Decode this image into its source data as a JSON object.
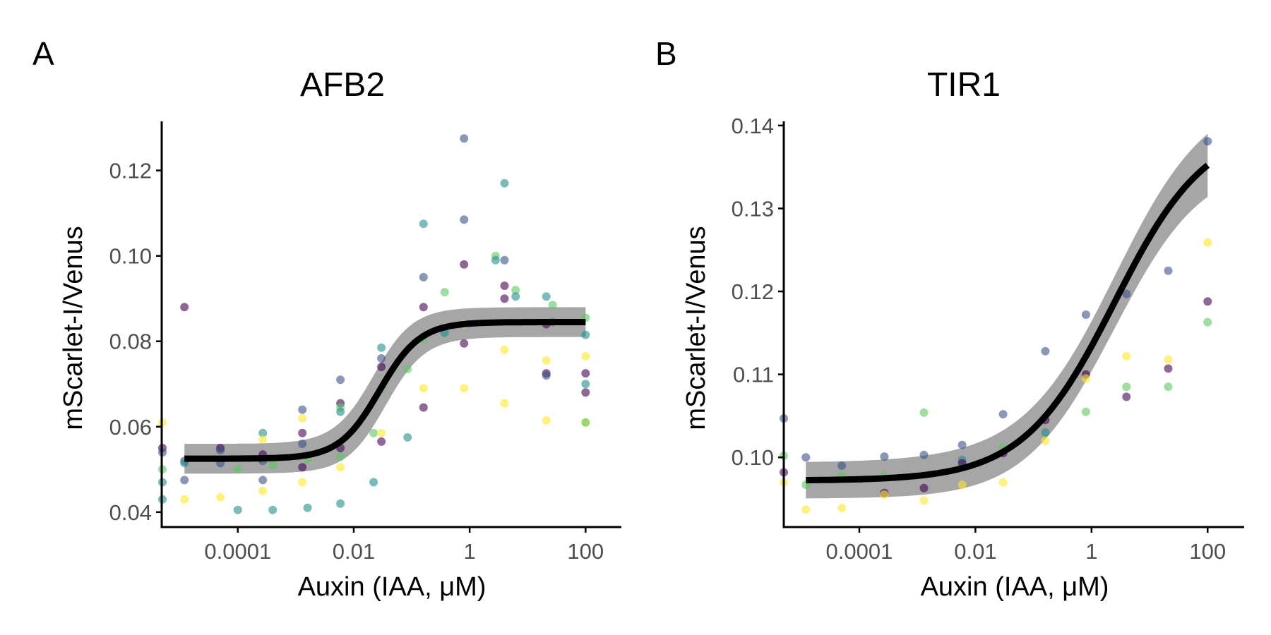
{
  "figure": {
    "panels": [
      {
        "letter": "A",
        "title": "AFB2"
      },
      {
        "letter": "B",
        "title": "TIR1"
      }
    ]
  },
  "colors": {
    "fit_line": "#000000",
    "ribbon": "#a6a6a6",
    "viridis": [
      "#440154",
      "#3b528b",
      "#21908c",
      "#5dc863",
      "#fde725"
    ]
  },
  "chart_data": [
    {
      "type": "scatter",
      "title": "AFB2",
      "xlabel": "Auxin (IAA, μM)",
      "ylabel": "mScarlet-I/Venus",
      "x_scale": "log10",
      "xlim": [
        5e-06,
        200
      ],
      "ylim": [
        0.0365,
        0.1315
      ],
      "x_ticks": [
        0.0001,
        0.01,
        1,
        100
      ],
      "x_tick_labels": [
        "0.0001",
        "0.01",
        "1",
        "100"
      ],
      "y_ticks": [
        0.04,
        0.06,
        0.08,
        0.1,
        0.12
      ],
      "y_tick_labels": [
        "0.04",
        "0.06",
        "0.08",
        "0.10",
        "0.12"
      ],
      "grid": false,
      "fit": {
        "bottom": 0.0525,
        "top": 0.0845,
        "ec50": 0.028,
        "hill": 1.25,
        "ribbon_half_width": 0.0041
      },
      "points": [
        {
          "x": 5e-06,
          "y": 0.055,
          "c": 0
        },
        {
          "x": 5e-06,
          "y": 0.054,
          "c": 1
        },
        {
          "x": 5e-06,
          "y": 0.047,
          "c": 2
        },
        {
          "x": 5e-06,
          "y": 0.05,
          "c": 3
        },
        {
          "x": 5e-06,
          "y": 0.061,
          "c": 4
        },
        {
          "x": 5e-06,
          "y": 0.043,
          "c": 2
        },
        {
          "x": 1.2e-05,
          "y": 0.088,
          "c": 0
        },
        {
          "x": 1.2e-05,
          "y": 0.052,
          "c": 1
        },
        {
          "x": 1.2e-05,
          "y": 0.0515,
          "c": 2
        },
        {
          "x": 1.2e-05,
          "y": 0.0475,
          "c": 1
        },
        {
          "x": 1.2e-05,
          "y": 0.043,
          "c": 4
        },
        {
          "x": 5e-05,
          "y": 0.055,
          "c": 0
        },
        {
          "x": 5e-05,
          "y": 0.0545,
          "c": 1
        },
        {
          "x": 5e-05,
          "y": 0.0515,
          "c": 1
        },
        {
          "x": 5e-05,
          "y": 0.0435,
          "c": 4
        },
        {
          "x": 0.0001,
          "y": 0.05,
          "c": 3
        },
        {
          "x": 0.0001,
          "y": 0.0405,
          "c": 2
        },
        {
          "x": 0.00027,
          "y": 0.0585,
          "c": 2
        },
        {
          "x": 0.00027,
          "y": 0.0535,
          "c": 0
        },
        {
          "x": 0.00027,
          "y": 0.052,
          "c": 1
        },
        {
          "x": 0.00027,
          "y": 0.057,
          "c": 4
        },
        {
          "x": 0.00027,
          "y": 0.0475,
          "c": 1
        },
        {
          "x": 0.00027,
          "y": 0.045,
          "c": 4
        },
        {
          "x": 0.0004,
          "y": 0.051,
          "c": 3
        },
        {
          "x": 0.0004,
          "y": 0.0405,
          "c": 2
        },
        {
          "x": 0.0013,
          "y": 0.064,
          "c": 1
        },
        {
          "x": 0.0013,
          "y": 0.0585,
          "c": 0
        },
        {
          "x": 0.0013,
          "y": 0.056,
          "c": 1
        },
        {
          "x": 0.0013,
          "y": 0.062,
          "c": 4
        },
        {
          "x": 0.0013,
          "y": 0.0505,
          "c": 0
        },
        {
          "x": 0.0013,
          "y": 0.047,
          "c": 4
        },
        {
          "x": 0.0016,
          "y": 0.0525,
          "c": 3
        },
        {
          "x": 0.0016,
          "y": 0.041,
          "c": 2
        },
        {
          "x": 0.0059,
          "y": 0.071,
          "c": 1
        },
        {
          "x": 0.0059,
          "y": 0.0655,
          "c": 0
        },
        {
          "x": 0.0059,
          "y": 0.0645,
          "c": 3
        },
        {
          "x": 0.0059,
          "y": 0.0635,
          "c": 2
        },
        {
          "x": 0.0059,
          "y": 0.055,
          "c": 0
        },
        {
          "x": 0.0059,
          "y": 0.053,
          "c": 3
        },
        {
          "x": 0.0059,
          "y": 0.0505,
          "c": 4
        },
        {
          "x": 0.0059,
          "y": 0.042,
          "c": 2
        },
        {
          "x": 0.022,
          "y": 0.0585,
          "c": 3
        },
        {
          "x": 0.022,
          "y": 0.047,
          "c": 2
        },
        {
          "x": 0.03,
          "y": 0.0785,
          "c": 2
        },
        {
          "x": 0.03,
          "y": 0.076,
          "c": 1
        },
        {
          "x": 0.03,
          "y": 0.074,
          "c": 0
        },
        {
          "x": 0.03,
          "y": 0.0685,
          "c": 3
        },
        {
          "x": 0.03,
          "y": 0.0585,
          "c": 4
        },
        {
          "x": 0.03,
          "y": 0.0565,
          "c": 0
        },
        {
          "x": 0.085,
          "y": 0.0735,
          "c": 3
        },
        {
          "x": 0.085,
          "y": 0.0575,
          "c": 2
        },
        {
          "x": 0.16,
          "y": 0.1075,
          "c": 2
        },
        {
          "x": 0.16,
          "y": 0.095,
          "c": 1
        },
        {
          "x": 0.16,
          "y": 0.088,
          "c": 0
        },
        {
          "x": 0.16,
          "y": 0.0805,
          "c": 3
        },
        {
          "x": 0.16,
          "y": 0.069,
          "c": 4
        },
        {
          "x": 0.16,
          "y": 0.0645,
          "c": 0
        },
        {
          "x": 0.37,
          "y": 0.0915,
          "c": 3
        },
        {
          "x": 0.37,
          "y": 0.082,
          "c": 2
        },
        {
          "x": 0.8,
          "y": 0.1275,
          "c": 1
        },
        {
          "x": 0.8,
          "y": 0.1085,
          "c": 1
        },
        {
          "x": 0.8,
          "y": 0.098,
          "c": 0
        },
        {
          "x": 0.8,
          "y": 0.084,
          "c": 4
        },
        {
          "x": 0.8,
          "y": 0.0795,
          "c": 0
        },
        {
          "x": 0.8,
          "y": 0.069,
          "c": 4
        },
        {
          "x": 2.8,
          "y": 0.1,
          "c": 3
        },
        {
          "x": 2.8,
          "y": 0.099,
          "c": 2
        },
        {
          "x": 4,
          "y": 0.117,
          "c": 2
        },
        {
          "x": 4,
          "y": 0.099,
          "c": 1
        },
        {
          "x": 4,
          "y": 0.093,
          "c": 0
        },
        {
          "x": 4,
          "y": 0.09,
          "c": 0
        },
        {
          "x": 4,
          "y": 0.078,
          "c": 4
        },
        {
          "x": 4,
          "y": 0.0655,
          "c": 4
        },
        {
          "x": 6.2,
          "y": 0.092,
          "c": 3
        },
        {
          "x": 6.2,
          "y": 0.0905,
          "c": 2
        },
        {
          "x": 21,
          "y": 0.0905,
          "c": 2
        },
        {
          "x": 21,
          "y": 0.084,
          "c": 0
        },
        {
          "x": 21,
          "y": 0.0755,
          "c": 4
        },
        {
          "x": 21,
          "y": 0.0725,
          "c": 0
        },
        {
          "x": 21,
          "y": 0.072,
          "c": 1
        },
        {
          "x": 21,
          "y": 0.0615,
          "c": 4
        },
        {
          "x": 27,
          "y": 0.0885,
          "c": 3
        },
        {
          "x": 27,
          "y": 0.0845,
          "c": 2
        },
        {
          "x": 100,
          "y": 0.0855,
          "c": 3
        },
        {
          "x": 100,
          "y": 0.0815,
          "c": 2
        },
        {
          "x": 100,
          "y": 0.0765,
          "c": 4
        },
        {
          "x": 100,
          "y": 0.0725,
          "c": 0
        },
        {
          "x": 100,
          "y": 0.07,
          "c": 2
        },
        {
          "x": 100,
          "y": 0.068,
          "c": 0
        },
        {
          "x": 100,
          "y": 0.061,
          "c": 4
        },
        {
          "x": 100,
          "y": 0.061,
          "c": 3
        }
      ]
    },
    {
      "type": "scatter",
      "title": "TIR1",
      "xlabel": "Auxin (IAA, μM)",
      "ylabel": "mScarlet-I/Venus",
      "x_scale": "log10",
      "xlim": [
        5e-06,
        200
      ],
      "ylim": [
        0.0916,
        0.1405
      ],
      "x_ticks": [
        0.0001,
        0.01,
        1,
        100
      ],
      "x_tick_labels": [
        "0.0001",
        "0.01",
        "1",
        "100"
      ],
      "y_ticks": [
        0.1,
        0.11,
        0.12,
        0.13,
        0.14
      ],
      "y_tick_labels": [
        "0.10",
        "0.11",
        "0.12",
        "0.13",
        "0.14"
      ],
      "grid": false,
      "fit": {
        "bottom": 0.0972,
        "ec50": 2.5,
        "hill": 0.55,
        "top": 0.1402,
        "ribbon_half_width_low": 0.0022,
        "ribbon_half_width_high": 0.0038
      },
      "points": [
        {
          "x": 5e-06,
          "y": 0.1047,
          "c": 1
        },
        {
          "x": 5e-06,
          "y": 0.1002,
          "c": 3
        },
        {
          "x": 5e-06,
          "y": 0.0982,
          "c": 0
        },
        {
          "x": 5e-06,
          "y": 0.097,
          "c": 4
        },
        {
          "x": 1.2e-05,
          "y": 0.1,
          "c": 1
        },
        {
          "x": 1.2e-05,
          "y": 0.0967,
          "c": 3
        },
        {
          "x": 1.2e-05,
          "y": 0.0937,
          "c": 4
        },
        {
          "x": 5e-05,
          "y": 0.099,
          "c": 1
        },
        {
          "x": 5e-05,
          "y": 0.0978,
          "c": 3
        },
        {
          "x": 5e-05,
          "y": 0.0939,
          "c": 4
        },
        {
          "x": 0.00027,
          "y": 0.1001,
          "c": 1
        },
        {
          "x": 0.00027,
          "y": 0.0978,
          "c": 3
        },
        {
          "x": 0.00027,
          "y": 0.0957,
          "c": 0
        },
        {
          "x": 0.00027,
          "y": 0.0955,
          "c": 4
        },
        {
          "x": 0.0013,
          "y": 0.1054,
          "c": 3
        },
        {
          "x": 0.0013,
          "y": 0.1003,
          "c": 1
        },
        {
          "x": 0.0013,
          "y": 0.0963,
          "c": 0
        },
        {
          "x": 0.0013,
          "y": 0.0948,
          "c": 4
        },
        {
          "x": 0.0059,
          "y": 0.1015,
          "c": 1
        },
        {
          "x": 0.0059,
          "y": 0.0997,
          "c": 2
        },
        {
          "x": 0.0059,
          "y": 0.0993,
          "c": 0
        },
        {
          "x": 0.0059,
          "y": 0.0967,
          "c": 4
        },
        {
          "x": 0.03,
          "y": 0.1052,
          "c": 1
        },
        {
          "x": 0.03,
          "y": 0.1012,
          "c": 3
        },
        {
          "x": 0.03,
          "y": 0.1005,
          "c": 0
        },
        {
          "x": 0.03,
          "y": 0.097,
          "c": 4
        },
        {
          "x": 0.16,
          "y": 0.1128,
          "c": 1
        },
        {
          "x": 0.16,
          "y": 0.1045,
          "c": 0
        },
        {
          "x": 0.16,
          "y": 0.103,
          "c": 2
        },
        {
          "x": 0.16,
          "y": 0.102,
          "c": 4
        },
        {
          "x": 0.8,
          "y": 0.1172,
          "c": 1
        },
        {
          "x": 0.8,
          "y": 0.11,
          "c": 0
        },
        {
          "x": 0.8,
          "y": 0.1095,
          "c": 4
        },
        {
          "x": 0.8,
          "y": 0.1055,
          "c": 3
        },
        {
          "x": 4,
          "y": 0.1197,
          "c": 1
        },
        {
          "x": 4,
          "y": 0.1122,
          "c": 4
        },
        {
          "x": 4,
          "y": 0.1085,
          "c": 3
        },
        {
          "x": 4,
          "y": 0.1073,
          "c": 0
        },
        {
          "x": 21,
          "y": 0.1225,
          "c": 1
        },
        {
          "x": 21,
          "y": 0.1118,
          "c": 4
        },
        {
          "x": 21,
          "y": 0.1107,
          "c": 0
        },
        {
          "x": 21,
          "y": 0.1085,
          "c": 3
        },
        {
          "x": 100,
          "y": 0.1381,
          "c": 1
        },
        {
          "x": 100,
          "y": 0.1259,
          "c": 4
        },
        {
          "x": 100,
          "y": 0.1188,
          "c": 0
        },
        {
          "x": 100,
          "y": 0.1163,
          "c": 3
        }
      ]
    }
  ]
}
